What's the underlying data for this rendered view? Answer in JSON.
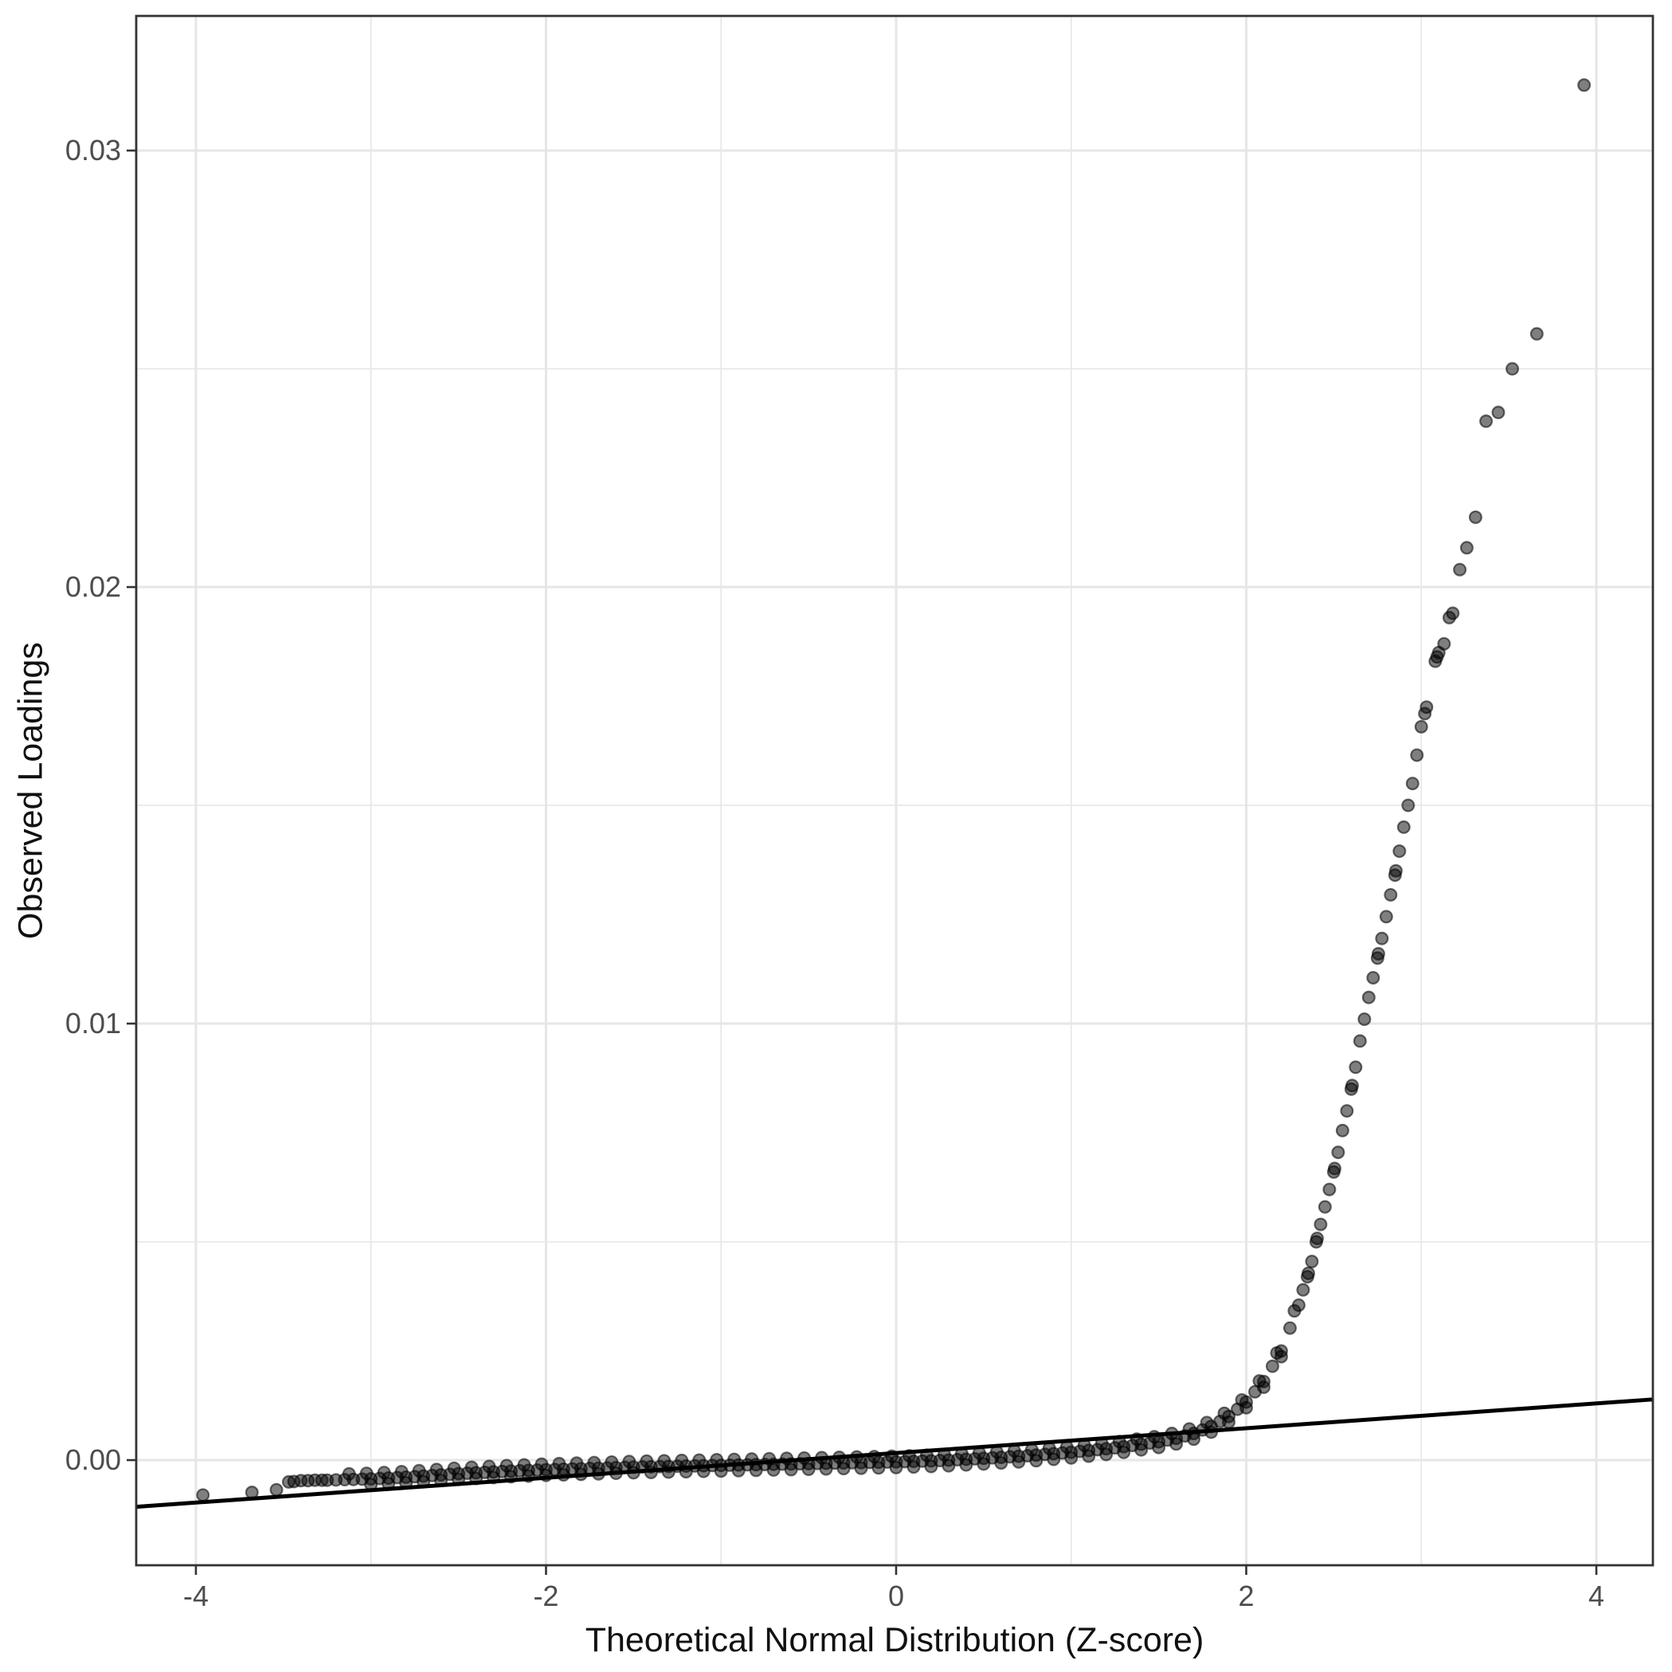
{
  "figure": {
    "background": "#ffffff",
    "kind": "ggplot-qq-scatter"
  },
  "style": {
    "grid_color": "#e6e6e6",
    "grid_major_width": 3,
    "grid_minor_width": 1.6,
    "panel_border_color": "#333333",
    "panel_border_width": 2.8,
    "tick_color": "#333333",
    "tick_length": 12,
    "tick_width": 2.6,
    "tick_label_color": "#4d4d4d",
    "tick_label_size": 36,
    "point_color": "#000000",
    "point_fill_opacity": 0.5,
    "point_stroke_opacity": 0.55,
    "point_radius": 7.4,
    "point_stroke_width": 2.2,
    "line_color": "#000000",
    "line_width": 5
  },
  "chart_data": {
    "type": "scatter",
    "title": "",
    "xlabel": "Theoretical Normal Distribution (Z-score)",
    "ylabel": "Observed Loadings",
    "xlim": [
      -4.341,
      4.323
    ],
    "ylim": [
      -0.002409,
      0.033084
    ],
    "grid": "on",
    "legend": "none",
    "x_ticks": [
      {
        "value": -4,
        "label": "-4"
      },
      {
        "value": -2,
        "label": "-2"
      },
      {
        "value": 0,
        "label": "0"
      },
      {
        "value": 2,
        "label": "2"
      },
      {
        "value": 4,
        "label": "4"
      }
    ],
    "x_minor": [
      -3,
      -1,
      1,
      3
    ],
    "y_ticks": [
      {
        "value": 0.0,
        "label": "0.00"
      },
      {
        "value": 0.01,
        "label": "0.01"
      },
      {
        "value": 0.02,
        "label": "0.02"
      },
      {
        "value": 0.03,
        "label": "0.03"
      }
    ],
    "y_minor": [
      0.005,
      0.015,
      0.025
    ],
    "reference_line": {
      "x1": -4.341,
      "y1": -0.00107,
      "x2": 4.323,
      "y2": 0.00139
    },
    "points": [
      [
        -3.96,
        -0.0008
      ],
      [
        -3.68,
        -0.00074
      ],
      [
        -3.54,
        -0.00068
      ],
      [
        -3.47,
        -0.0005
      ],
      [
        -3.44,
        -0.00049
      ],
      [
        -3.4,
        -0.00047
      ],
      [
        -3.36,
        -0.00047
      ],
      [
        -3.32,
        -0.00046
      ],
      [
        -3.28,
        -0.00046
      ],
      [
        -3.25,
        -0.00046
      ],
      [
        -3.2,
        -0.000454
      ],
      [
        -3.15,
        -0.000448
      ],
      [
        -3.1,
        -0.000442
      ],
      [
        -3.05,
        -0.000436
      ],
      [
        -3.0,
        -0.00043
      ],
      [
        -2.95,
        -0.00042
      ],
      [
        -2.9,
        -0.00041
      ],
      [
        -2.85,
        -0.0004
      ],
      [
        -2.8,
        -0.00039
      ],
      [
        -2.75,
        -0.00038
      ],
      [
        -2.7,
        -0.000366
      ],
      [
        -2.65,
        -0.000352
      ],
      [
        -2.6,
        -0.000338
      ],
      [
        -2.55,
        -0.000324
      ],
      [
        -2.5,
        -0.00031
      ],
      [
        -2.45,
        -0.0003
      ],
      [
        -2.4,
        -0.00029
      ],
      [
        -2.35,
        -0.00028
      ],
      [
        -2.3,
        -0.00027
      ],
      [
        -2.25,
        -0.00026
      ],
      [
        -2.2,
        -0.000252
      ],
      [
        -2.15,
        -0.000244
      ],
      [
        -2.1,
        -0.000236
      ],
      [
        -2.05,
        -0.000228
      ],
      [
        -2.0,
        -0.00022
      ],
      [
        -1.95,
        -0.000214
      ],
      [
        -1.9,
        -0.000208
      ],
      [
        -1.85,
        -0.000202
      ],
      [
        -1.8,
        -0.000196
      ],
      [
        -1.75,
        -0.00019
      ],
      [
        -1.7,
        -0.000184
      ],
      [
        -1.65,
        -0.000178
      ],
      [
        -1.6,
        -0.000172
      ],
      [
        -1.55,
        -0.000166
      ],
      [
        -1.5,
        -0.00016
      ],
      [
        -1.45,
        -0.000156
      ],
      [
        -1.4,
        -0.000152
      ],
      [
        -1.35,
        -0.000148
      ],
      [
        -1.3,
        -0.000144
      ],
      [
        -1.25,
        -0.00014
      ],
      [
        -1.2,
        -0.000136
      ],
      [
        -1.15,
        -0.000132
      ],
      [
        -1.1,
        -0.000128
      ],
      [
        -1.05,
        -0.000124
      ],
      [
        -1.0,
        -0.00012
      ],
      [
        -0.95,
        -0.000116
      ],
      [
        -0.9,
        -0.000112
      ],
      [
        -0.85,
        -0.000108
      ],
      [
        -0.8,
        -0.000104
      ],
      [
        -0.75,
        -0.0001
      ],
      [
        -0.7,
        -9.6e-05
      ],
      [
        -0.65,
        -9.2e-05
      ],
      [
        -0.6,
        -8.8e-05
      ],
      [
        -0.55,
        -8.4e-05
      ],
      [
        -0.5,
        -8e-05
      ],
      [
        -0.45,
        -7.6e-05
      ],
      [
        -0.4,
        -7.2e-05
      ],
      [
        -0.35,
        -6.8e-05
      ],
      [
        -0.3,
        -6.4e-05
      ],
      [
        -0.25,
        -6e-05
      ],
      [
        -0.2,
        -5.6e-05
      ],
      [
        -0.15,
        -5.2e-05
      ],
      [
        -0.1,
        -4.8e-05
      ],
      [
        -0.05,
        -4.4e-05
      ],
      [
        0,
        -4e-05
      ],
      [
        0.05,
        -3.4e-05
      ],
      [
        0.1,
        -2.8e-05
      ],
      [
        0.15,
        -2.2e-05
      ],
      [
        0.2,
        -1.6e-05
      ],
      [
        0.25,
        -1e-05
      ],
      [
        0.3,
        0
      ],
      [
        0.35,
        1e-05
      ],
      [
        0.4,
        2e-05
      ],
      [
        0.45,
        3e-05
      ],
      [
        0.5,
        4e-05
      ],
      [
        0.55,
        5.2e-05
      ],
      [
        0.6,
        6.4e-05
      ],
      [
        0.65,
        7.6e-05
      ],
      [
        0.7,
        8.8e-05
      ],
      [
        0.75,
        0.0001
      ],
      [
        0.8,
        0.000116
      ],
      [
        0.85,
        0.000132
      ],
      [
        0.9,
        0.000148
      ],
      [
        0.95,
        0.000164
      ],
      [
        1.0,
        0.00018
      ],
      [
        1.05,
        0.0002
      ],
      [
        1.1,
        0.00022
      ],
      [
        1.15,
        0.00024
      ],
      [
        1.2,
        0.00026
      ],
      [
        1.25,
        0.00028
      ],
      [
        1.3,
        0.000308
      ],
      [
        1.35,
        0.000336
      ],
      [
        1.4,
        0.000364
      ],
      [
        1.45,
        0.000392
      ],
      [
        1.5,
        0.00042
      ],
      [
        1.55,
        0.00046
      ],
      [
        1.6,
        0.0005
      ],
      [
        1.65,
        0.000555
      ],
      [
        1.7,
        0.00061
      ],
      [
        1.75,
        0.00069
      ],
      [
        1.8,
        0.00077
      ],
      [
        1.85,
        0.000885
      ],
      [
        1.9,
        0.001
      ],
      [
        1.95,
        0.001165
      ],
      [
        2.0,
        0.00133
      ],
      [
        2.05,
        0.001565
      ],
      [
        2.1,
        0.0018
      ],
      [
        2.15,
        0.00215
      ],
      [
        2.2,
        0.0025
      ],
      [
        2.25,
        0.003025
      ],
      [
        2.3,
        0.00355
      ],
      [
        -3.125,
        -0.000315
      ],
      [
        -3.025,
        -0.000303
      ],
      [
        -2.925,
        -0.000285
      ],
      [
        -2.825,
        -0.000265
      ],
      [
        -2.725,
        -0.000243
      ],
      [
        -2.625,
        -0.000215
      ],
      [
        -2.525,
        -0.000187
      ],
      [
        -2.425,
        -0.000165
      ],
      [
        -2.325,
        -0.000145
      ],
      [
        -2.225,
        -0.000126
      ],
      [
        -2.125,
        -0.00011
      ],
      [
        -2.025,
        -9.4e-05
      ],
      [
        -1.925,
        -8.1e-05
      ],
      [
        -1.825,
        -6.9e-05
      ],
      [
        -1.725,
        -5.7e-05
      ],
      [
        -1.625,
        -4.5e-05
      ],
      [
        -1.525,
        -3.3e-05
      ],
      [
        -1.425,
        -2.4e-05
      ],
      [
        -1.325,
        -1.6e-05
      ],
      [
        -1.225,
        -8e-06
      ],
      [
        -1.125,
        0
      ],
      [
        -1.025,
        8e-06
      ],
      [
        -0.925,
        1.6e-05
      ],
      [
        -0.825,
        2.4e-05
      ],
      [
        -0.725,
        3.2e-05
      ],
      [
        -0.625,
        4e-05
      ],
      [
        -0.525,
        4.8e-05
      ],
      [
        -0.425,
        5.6e-05
      ],
      [
        -0.325,
        6.4e-05
      ],
      [
        -0.225,
        7.2e-05
      ],
      [
        -0.125,
        8e-05
      ],
      [
        -0.025,
        8.8e-05
      ],
      [
        0.075,
        9.9e-05
      ],
      [
        0.175,
        0.000111
      ],
      [
        0.275,
        0.000125
      ],
      [
        0.375,
        0.000145
      ],
      [
        0.475,
        0.000165
      ],
      [
        0.575,
        0.000188
      ],
      [
        0.675,
        0.000212
      ],
      [
        0.775,
        0.000238
      ],
      [
        0.875,
        0.00027
      ],
      [
        0.975,
        0.000302
      ],
      [
        1.075,
        0.00034
      ],
      [
        1.175,
        0.00038
      ],
      [
        1.275,
        0.000424
      ],
      [
        1.375,
        0.00048
      ],
      [
        1.475,
        0.000536
      ],
      [
        1.575,
        0.00061
      ],
      [
        1.675,
        0.000713
      ],
      [
        1.775,
        0.00086
      ],
      [
        1.875,
        0.001073
      ],
      [
        1.975,
        0.001378
      ],
      [
        2.075,
        0.001813
      ],
      [
        2.175,
        0.002455
      ],
      [
        2.275,
        0.003418
      ],
      [
        -3.0,
        -0.00056
      ],
      [
        -2.9,
        -0.00054
      ],
      [
        -2.8,
        -0.00052
      ],
      [
        -2.7,
        -0.000496
      ],
      [
        -2.6,
        -0.000468
      ],
      [
        -2.5,
        -0.00044
      ],
      [
        -2.4,
        -0.00042
      ],
      [
        -2.3,
        -0.0004
      ],
      [
        -2.2,
        -0.000382
      ],
      [
        -2.1,
        -0.000366
      ],
      [
        -2.0,
        -0.00035
      ],
      [
        -1.9,
        -0.000338
      ],
      [
        -1.8,
        -0.000326
      ],
      [
        -1.7,
        -0.000314
      ],
      [
        -1.6,
        -0.000302
      ],
      [
        -1.5,
        -0.00029
      ],
      [
        -1.4,
        -0.000282
      ],
      [
        -1.3,
        -0.000274
      ],
      [
        -1.2,
        -0.000266
      ],
      [
        -1.1,
        -0.000258
      ],
      [
        -1.0,
        -0.00025
      ],
      [
        -0.9,
        -0.000242
      ],
      [
        -0.8,
        -0.000234
      ],
      [
        -0.7,
        -0.000226
      ],
      [
        -0.6,
        -0.000218
      ],
      [
        -0.5,
        -0.00021
      ],
      [
        -0.4,
        -0.000202
      ],
      [
        -0.3,
        -0.000194
      ],
      [
        -0.2,
        -0.000186
      ],
      [
        -0.1,
        -0.000178
      ],
      [
        0,
        -0.00017
      ],
      [
        0.1,
        -0.000158
      ],
      [
        0.2,
        -0.000146
      ],
      [
        0.3,
        -0.00013
      ],
      [
        0.4,
        -0.00011
      ],
      [
        0.5,
        -9e-05
      ],
      [
        0.6,
        -6.6e-05
      ],
      [
        0.7,
        -4.2e-05
      ],
      [
        0.8,
        -1.4e-05
      ],
      [
        0.9,
        1.8e-05
      ],
      [
        1.0,
        5e-05
      ],
      [
        1.1,
        9e-05
      ],
      [
        1.2,
        0.00013
      ],
      [
        1.3,
        0.000178
      ],
      [
        1.4,
        0.000234
      ],
      [
        1.5,
        0.00029
      ],
      [
        1.6,
        0.00037
      ],
      [
        1.7,
        0.00048
      ],
      [
        1.8,
        0.00064
      ],
      [
        1.9,
        0.00087
      ],
      [
        2.0,
        0.0012
      ],
      [
        2.1,
        0.00167
      ],
      [
        2.2,
        0.00237
      ],
      [
        2.325,
        0.0039
      ],
      [
        2.35,
        0.0042
      ],
      [
        2.355,
        0.00428
      ],
      [
        2.375,
        0.00455
      ],
      [
        2.4,
        0.005
      ],
      [
        2.405,
        0.00508
      ],
      [
        2.425,
        0.0054
      ],
      [
        2.45,
        0.0058
      ],
      [
        2.475,
        0.0062
      ],
      [
        2.5,
        0.0066
      ],
      [
        2.505,
        0.00668
      ],
      [
        2.525,
        0.00705
      ],
      [
        2.55,
        0.00755
      ],
      [
        2.575,
        0.008
      ],
      [
        2.6,
        0.0085
      ],
      [
        2.605,
        0.00858
      ],
      [
        2.625,
        0.009
      ],
      [
        2.65,
        0.0096
      ],
      [
        2.675,
        0.0101
      ],
      [
        2.7,
        0.0106
      ],
      [
        2.725,
        0.01105
      ],
      [
        2.75,
        0.0115
      ],
      [
        2.755,
        0.0116
      ],
      [
        2.775,
        0.01195
      ],
      [
        2.8,
        0.01245
      ],
      [
        2.825,
        0.01295
      ],
      [
        2.85,
        0.0134
      ],
      [
        2.855,
        0.0135
      ],
      [
        2.875,
        0.01395
      ],
      [
        2.9,
        0.0145
      ],
      [
        2.925,
        0.015
      ],
      [
        2.95,
        0.0155
      ],
      [
        2.975,
        0.01615
      ],
      [
        3.0,
        0.0168
      ],
      [
        3.02,
        0.0171
      ],
      [
        3.03,
        0.01725
      ],
      [
        3.08,
        0.0183
      ],
      [
        3.09,
        0.0184
      ],
      [
        3.1,
        0.0185
      ],
      [
        3.13,
        0.0187
      ],
      [
        3.16,
        0.0193
      ],
      [
        3.18,
        0.0194
      ],
      [
        3.22,
        0.0204
      ],
      [
        3.26,
        0.0209
      ],
      [
        3.31,
        0.0216
      ],
      [
        3.37,
        0.0238
      ],
      [
        3.44,
        0.024
      ],
      [
        3.52,
        0.025
      ],
      [
        3.66,
        0.0258
      ],
      [
        3.93,
        0.0315
      ]
    ]
  }
}
